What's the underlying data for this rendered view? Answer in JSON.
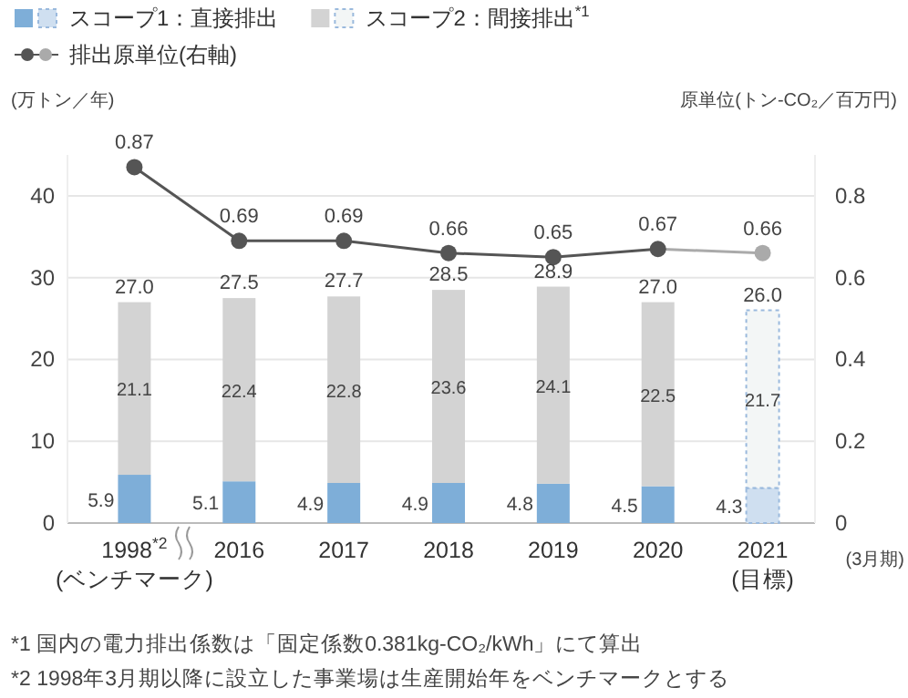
{
  "chart_data": {
    "type": "bar",
    "stacked": true,
    "ylabel": "(万トン／年)",
    "y2label": "原単位(トン-CO₂／百万円)",
    "xlabel": "(3月期)",
    "categories": [
      "1998$^{*2}$\n(ベンチマーク)",
      "2016",
      "2017",
      "2018",
      "2019",
      "2020",
      "2021\n(目標)"
    ],
    "series": [
      {
        "name": "スコープ1：直接排出",
        "colors": [
          "#7eaed8",
          "#7eaed8",
          "#7eaed8",
          "#7eaed8",
          "#7eaed8",
          "#7eaed8",
          "#cfdff0"
        ],
        "values": [
          5.9,
          5.1,
          4.9,
          4.9,
          4.8,
          4.5,
          4.3
        ]
      },
      {
        "name": "スコープ2：間接排出$^{*1}$",
        "colors": [
          "#d3d3d3",
          "#d3d3d3",
          "#d3d3d3",
          "#d3d3d3",
          "#d3d3d3",
          "#d3d3d3",
          "#f3f6f6"
        ],
        "values": [
          21.1,
          22.4,
          22.8,
          23.6,
          24.1,
          22.5,
          21.7
        ]
      },
      {
        "name": "排出原単位(右軸)",
        "type": "line",
        "axis": "y2",
        "marker": "circle",
        "colors": [
          "#555555",
          "#555555",
          "#555555",
          "#555555",
          "#555555",
          "#555555",
          "#aaaaaa"
        ],
        "values": [
          0.87,
          0.69,
          0.69,
          0.66,
          0.65,
          0.67,
          0.66
        ]
      }
    ],
    "totals": [
      "27.0",
      "27.5",
      "27.7",
      "28.5",
      "28.9",
      "27.0",
      "26.0"
    ],
    "data_labels": true,
    "ylim": [
      0,
      45
    ],
    "yticks": [
      0,
      10,
      20,
      30,
      40
    ],
    "y2lim": [
      0,
      0.9
    ],
    "y2ticks": [
      0,
      0.2,
      0.4,
      0.6,
      0.8
    ],
    "grid": "y",
    "legend": "top left",
    "annotations": [
      "*1 国内の電力排出係数は「固定係数0.381kg-CO₂/kWh」にて算出",
      "*2 1998年3月期以降に設立した事業場は生産開始年をベンチマークとする"
    ]
  }
}
